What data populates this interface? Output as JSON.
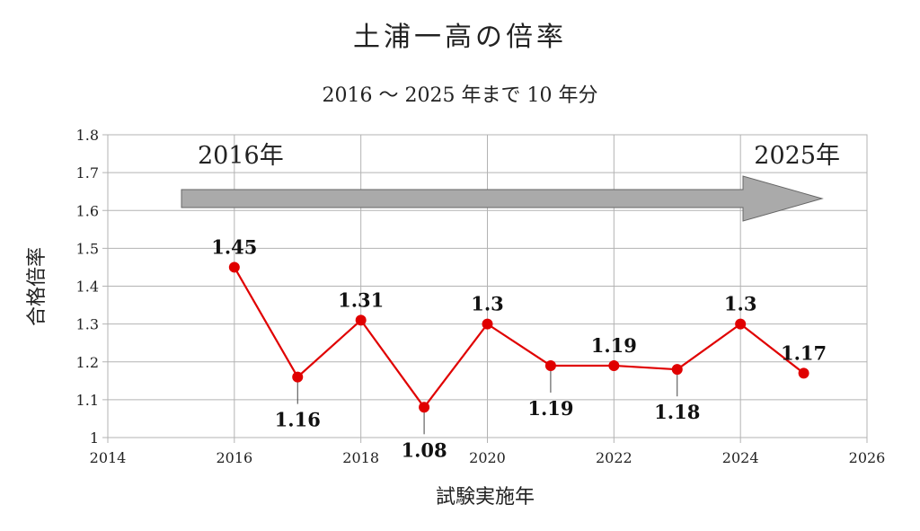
{
  "chart_data": {
    "type": "line",
    "title": "土浦一高の倍率",
    "subtitle": "2016 ～ 2025 年まで 10 年分",
    "xlabel": "試験実施年",
    "ylabel": "合格倍率",
    "xlim": [
      2014,
      2026
    ],
    "ylim": [
      1,
      1.8
    ],
    "x_ticks": [
      2014,
      2016,
      2018,
      2020,
      2022,
      2024,
      2026
    ],
    "y_ticks": [
      1,
      1.1,
      1.2,
      1.3,
      1.4,
      1.5,
      1.6,
      1.7,
      1.8
    ],
    "y_tick_labels": [
      "1",
      "1.1",
      "1.2",
      "1.3",
      "1.4",
      "1.5",
      "1.6",
      "1.7",
      "1.8"
    ],
    "grid": true,
    "series_color": "#e00000",
    "points": [
      {
        "x": 2016,
        "y": 1.45,
        "label": "1.45",
        "label_pos": "above"
      },
      {
        "x": 2017,
        "y": 1.16,
        "label": "1.16",
        "label_pos": "below"
      },
      {
        "x": 2018,
        "y": 1.31,
        "label": "1.31",
        "label_pos": "above"
      },
      {
        "x": 2019,
        "y": 1.08,
        "label": "1.08",
        "label_pos": "below"
      },
      {
        "x": 2020,
        "y": 1.3,
        "label": "1.3",
        "label_pos": "above"
      },
      {
        "x": 2021,
        "y": 1.19,
        "label": "1.19",
        "label_pos": "below"
      },
      {
        "x": 2022,
        "y": 1.19,
        "label": "1.19",
        "label_pos": "above"
      },
      {
        "x": 2023,
        "y": 1.18,
        "label": "1.18",
        "label_pos": "below"
      },
      {
        "x": 2024,
        "y": 1.3,
        "label": "1.3",
        "label_pos": "above"
      },
      {
        "x": 2025,
        "y": 1.17,
        "label": "1.17",
        "label_pos": "above"
      }
    ],
    "annotations": {
      "start_text": "2016年",
      "end_text": "2025年",
      "arrow_color": "#aaaaaa"
    }
  }
}
